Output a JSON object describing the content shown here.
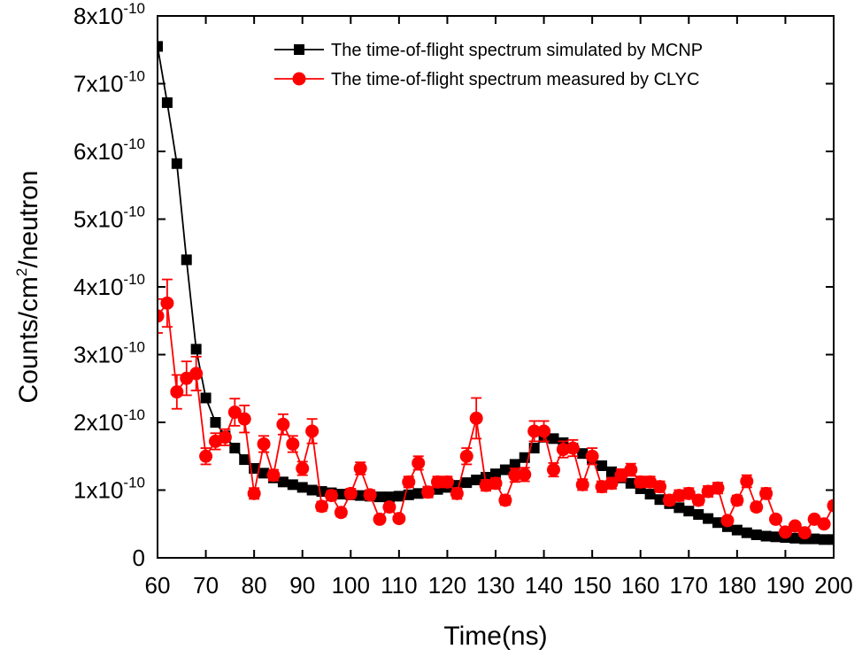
{
  "chart_data": {
    "type": "line",
    "title": "",
    "xlabel": "Time(ns)",
    "ylabel": {
      "pre": "Counts/cm",
      "sup": "2",
      "post": "/neutron"
    },
    "xlim": [
      60,
      200
    ],
    "ylim": [
      0,
      8e-10
    ],
    "xticks": [
      60,
      70,
      80,
      90,
      100,
      110,
      120,
      130,
      140,
      150,
      160,
      170,
      180,
      190,
      200
    ],
    "xtick_labels": [
      "60",
      "70",
      "80",
      "90",
      "100",
      "110",
      "120",
      "130",
      "140",
      "150",
      "160",
      "170",
      "180",
      "190",
      "200"
    ],
    "yticks": [
      0,
      1e-10,
      2e-10,
      3e-10,
      4e-10,
      5e-10,
      6e-10,
      7e-10,
      8e-10
    ],
    "ytick_labels": [
      {
        "mant": "0",
        "exp": ""
      },
      {
        "mant": "1x10",
        "exp": "-10"
      },
      {
        "mant": "2x10",
        "exp": "-10"
      },
      {
        "mant": "3x10",
        "exp": "-10"
      },
      {
        "mant": "4x10",
        "exp": "-10"
      },
      {
        "mant": "5x10",
        "exp": "-10"
      },
      {
        "mant": "6x10",
        "exp": "-10"
      },
      {
        "mant": "7x10",
        "exp": "-10"
      },
      {
        "mant": "8x10",
        "exp": "-10"
      }
    ],
    "legend_position": "top-right",
    "series": [
      {
        "name": "The time-of-flight spectrum simulated by MCNP",
        "color": "#000000",
        "marker": "square",
        "x": [
          60,
          62,
          64,
          66,
          68,
          70,
          72,
          74,
          76,
          78,
          80,
          82,
          84,
          86,
          88,
          90,
          92,
          94,
          96,
          98,
          100,
          102,
          104,
          106,
          108,
          110,
          112,
          114,
          116,
          118,
          120,
          122,
          124,
          126,
          128,
          130,
          132,
          134,
          136,
          138,
          140,
          142,
          144,
          146,
          148,
          150,
          152,
          154,
          156,
          158,
          160,
          162,
          164,
          166,
          168,
          170,
          172,
          174,
          176,
          178,
          180,
          182,
          184,
          186,
          188,
          190,
          192,
          194,
          196,
          198,
          200
        ],
        "y": [
          7.55e-10,
          6.72e-10,
          5.82e-10,
          4.4e-10,
          3.08e-10,
          2.36e-10,
          2e-10,
          1.8e-10,
          1.62e-10,
          1.45e-10,
          1.32e-10,
          1.25e-10,
          1.18e-10,
          1.12e-10,
          1.08e-10,
          1.04e-10,
          1e-10,
          9.8e-11,
          9.6e-11,
          9.4e-11,
          9.3e-11,
          9.2e-11,
          9.1e-11,
          9e-11,
          9e-11,
          9.1e-11,
          9.3e-11,
          9.5e-11,
          9.8e-11,
          1.01e-10,
          1.04e-10,
          1.07e-10,
          1.11e-10,
          1.15e-10,
          1.19e-10,
          1.24e-10,
          1.3e-10,
          1.38e-10,
          1.48e-10,
          1.62e-10,
          1.78e-10,
          1.76e-10,
          1.7e-10,
          1.62e-10,
          1.54e-10,
          1.45e-10,
          1.36e-10,
          1.27e-10,
          1.18e-10,
          1.1e-10,
          1.02e-10,
          9.4e-11,
          8.6e-11,
          8e-11,
          7.4e-11,
          6.9e-11,
          6.4e-11,
          5.8e-11,
          5.2e-11,
          4.6e-11,
          4.1e-11,
          3.7e-11,
          3.4e-11,
          3.2e-11,
          3.1e-11,
          3e-11,
          2.9e-11,
          2.8e-11,
          2.8e-11,
          2.7e-11,
          2.7e-11
        ]
      },
      {
        "name": "The time-of-flight spectrum measured by CLYC",
        "color": "#ff0000",
        "marker": "circle",
        "x": [
          60,
          62,
          64,
          66,
          68,
          70,
          72,
          74,
          76,
          78,
          80,
          82,
          84,
          86,
          88,
          90,
          92,
          94,
          96,
          98,
          100,
          102,
          104,
          106,
          108,
          110,
          112,
          114,
          116,
          118,
          120,
          122,
          124,
          126,
          128,
          130,
          132,
          134,
          136,
          138,
          140,
          142,
          144,
          146,
          148,
          150,
          152,
          154,
          156,
          158,
          160,
          162,
          164,
          166,
          168,
          170,
          172,
          174,
          176,
          178,
          180,
          182,
          184,
          186,
          188,
          190,
          192,
          194,
          196,
          198,
          200
        ],
        "y": [
          3.57e-10,
          3.76e-10,
          2.45e-10,
          2.65e-10,
          2.72e-10,
          1.5e-10,
          1.72e-10,
          1.78e-10,
          2.15e-10,
          2.05e-10,
          9.5e-11,
          1.68e-10,
          1.22e-10,
          1.97e-10,
          1.68e-10,
          1.32e-10,
          1.87e-10,
          7.6e-11,
          9.2e-11,
          6.7e-11,
          9.5e-11,
          1.32e-10,
          9.3e-11,
          5.7e-11,
          7.5e-11,
          5.8e-11,
          1.12e-10,
          1.4e-10,
          9.7e-11,
          1.12e-10,
          1.12e-10,
          9.5e-11,
          1.5e-10,
          2.06e-10,
          1.07e-10,
          1.1e-10,
          8.5e-11,
          1.22e-10,
          1.23e-10,
          1.87e-10,
          1.87e-10,
          1.3e-10,
          1.6e-10,
          1.62e-10,
          1.08e-10,
          1.5e-10,
          1.05e-10,
          1.1e-10,
          1.22e-10,
          1.3e-10,
          1.12e-10,
          1.12e-10,
          1.05e-10,
          8.5e-11,
          9.2e-11,
          9.5e-11,
          8.5e-11,
          9.8e-11,
          1.03e-10,
          5.5e-11,
          8.5e-11,
          1.13e-10,
          7.5e-11,
          9.5e-11,
          5.7e-11,
          3.8e-11,
          4.7e-11,
          3.7e-11,
          5.7e-11,
          5e-11,
          7.7e-11
        ],
        "err": [
          2.5e-11,
          3.5e-11,
          2.5e-11,
          2.5e-11,
          2.5e-11,
          1.2e-11,
          1.2e-11,
          1.2e-11,
          2e-11,
          2e-11,
          8e-12,
          1.2e-11,
          8e-12,
          1.5e-11,
          1.2e-11,
          1e-11,
          1.8e-11,
          7e-12,
          7e-12,
          6e-12,
          7e-12,
          9e-12,
          7e-12,
          5e-12,
          6e-12,
          5e-12,
          8e-12,
          1e-11,
          8e-12,
          8e-12,
          8e-12,
          8e-12,
          1.2e-11,
          3e-11,
          8e-12,
          8e-12,
          7e-12,
          1e-11,
          1e-11,
          1.5e-11,
          1.5e-11,
          1e-11,
          1.2e-11,
          1.2e-11,
          8e-12,
          1.2e-11,
          8e-12,
          8e-12,
          9e-12,
          9e-12,
          8e-12,
          8e-12,
          8e-12,
          7e-12,
          8e-12,
          8e-12,
          7e-12,
          8e-12,
          8e-12,
          5e-12,
          7e-12,
          9e-12,
          6e-12,
          8e-12,
          5e-12,
          4e-12,
          4e-12,
          4e-12,
          5e-12,
          4e-12,
          6e-12
        ]
      }
    ]
  }
}
